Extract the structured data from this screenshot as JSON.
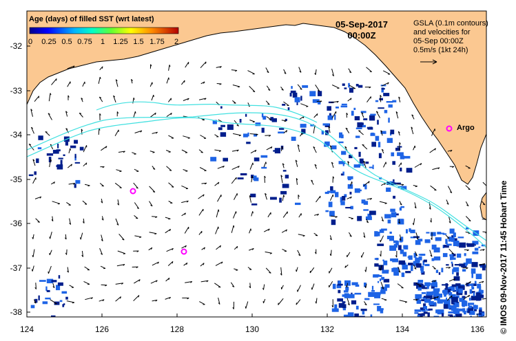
{
  "legend": {
    "title": "Age (days) of filled SST (wrt latest)",
    "ticks": [
      "0",
      "0.25",
      "0.5",
      "0.75",
      "1",
      "1.25",
      "1.5",
      "1.75",
      "2"
    ]
  },
  "date": {
    "line1": "05-Sep-2017",
    "line2": "00:00Z"
  },
  "gsla": {
    "line1": "GSLA (0.1m contours)",
    "line2": "and velocities for",
    "line3": "05-Sep 00:00Z",
    "line4": "0.5m/s (1kt 24h)"
  },
  "axes": {
    "lat_labels": [
      "-32",
      "-33",
      "-34",
      "-35",
      "-36",
      "-37",
      "-38"
    ],
    "lon_labels": [
      "124",
      "126",
      "128",
      "130",
      "132",
      "134",
      "136"
    ]
  },
  "argo_label": "Argo",
  "credit": "© IMOS 09-Nov-2017 11:45 Hobart Time",
  "colors": {
    "land": "#FBC891",
    "contour": "#40E0E0",
    "argo": "#FF00FF",
    "sst_age_dark": "#001E8C",
    "sst_age_mid": "#1E64E6"
  }
}
